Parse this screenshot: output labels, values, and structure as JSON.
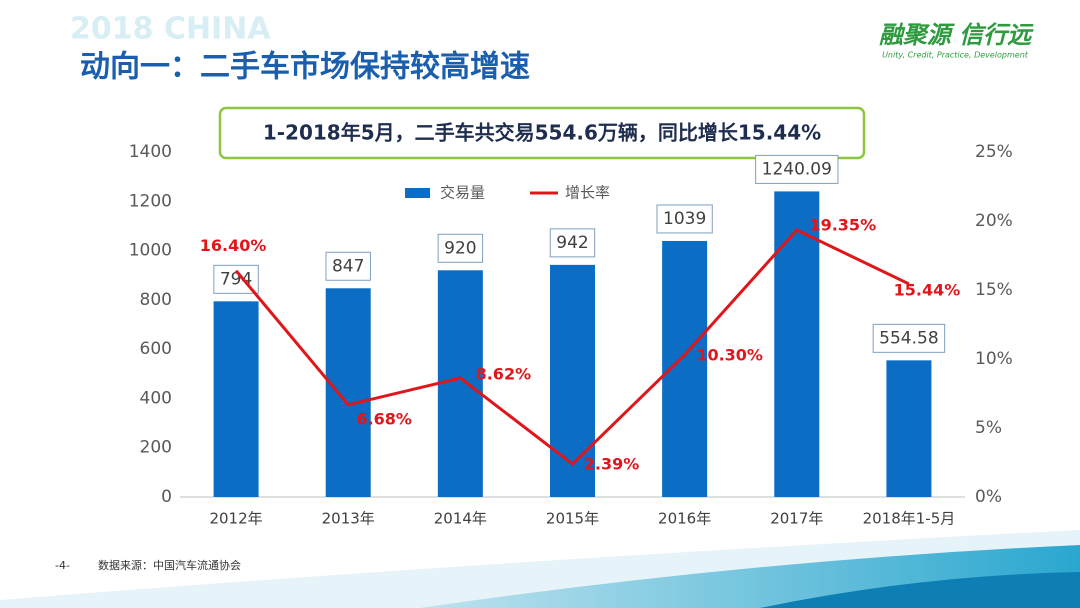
{
  "header": {
    "watermark": "2018 CHINA",
    "title": "动向一：二手车市场保持较高增速",
    "logo": "融聚源 信行远",
    "slogan": "Unity, Credit, Practice, Development"
  },
  "callout": "1-2018年5月，二手车共交易554.6万辆，同比增长15.44%",
  "chart_data": {
    "type": "bar-line",
    "categories": [
      "2012年",
      "2013年",
      "2014年",
      "2015年",
      "2016年",
      "2017年",
      "2018年1-5月"
    ],
    "series": [
      {
        "name": "交易量",
        "type": "bar",
        "color": "#0b6dc3",
        "values": [
          794,
          847,
          920,
          942,
          1039,
          1240.09,
          554.58
        ]
      },
      {
        "name": "增长率",
        "type": "line",
        "axis": "y2",
        "color": "#e0161b",
        "values": [
          16.4,
          6.68,
          8.62,
          2.39,
          10.3,
          19.35,
          15.44
        ],
        "value_labels": [
          "16.40%",
          "6.68%",
          "8.62%",
          "2.39%",
          "10.30%",
          "19.35%",
          "15.44%"
        ]
      }
    ],
    "ylim": [
      0,
      1400
    ],
    "yticks": [
      0,
      200,
      400,
      600,
      800,
      1000,
      1200,
      1400
    ],
    "y2lim": [
      0,
      25
    ],
    "y2ticks": [
      {
        "value": 0,
        "label": "0%"
      },
      {
        "value": 5,
        "label": "5%"
      },
      {
        "value": 10,
        "label": "10%"
      },
      {
        "value": 15,
        "label": "15%"
      },
      {
        "value": 20,
        "label": "20%"
      },
      {
        "value": 25,
        "label": "25%"
      }
    ],
    "grid": false,
    "legend": "top"
  },
  "footer": {
    "page": "-4-",
    "source": "数据来源：中国汽车流通协会"
  }
}
